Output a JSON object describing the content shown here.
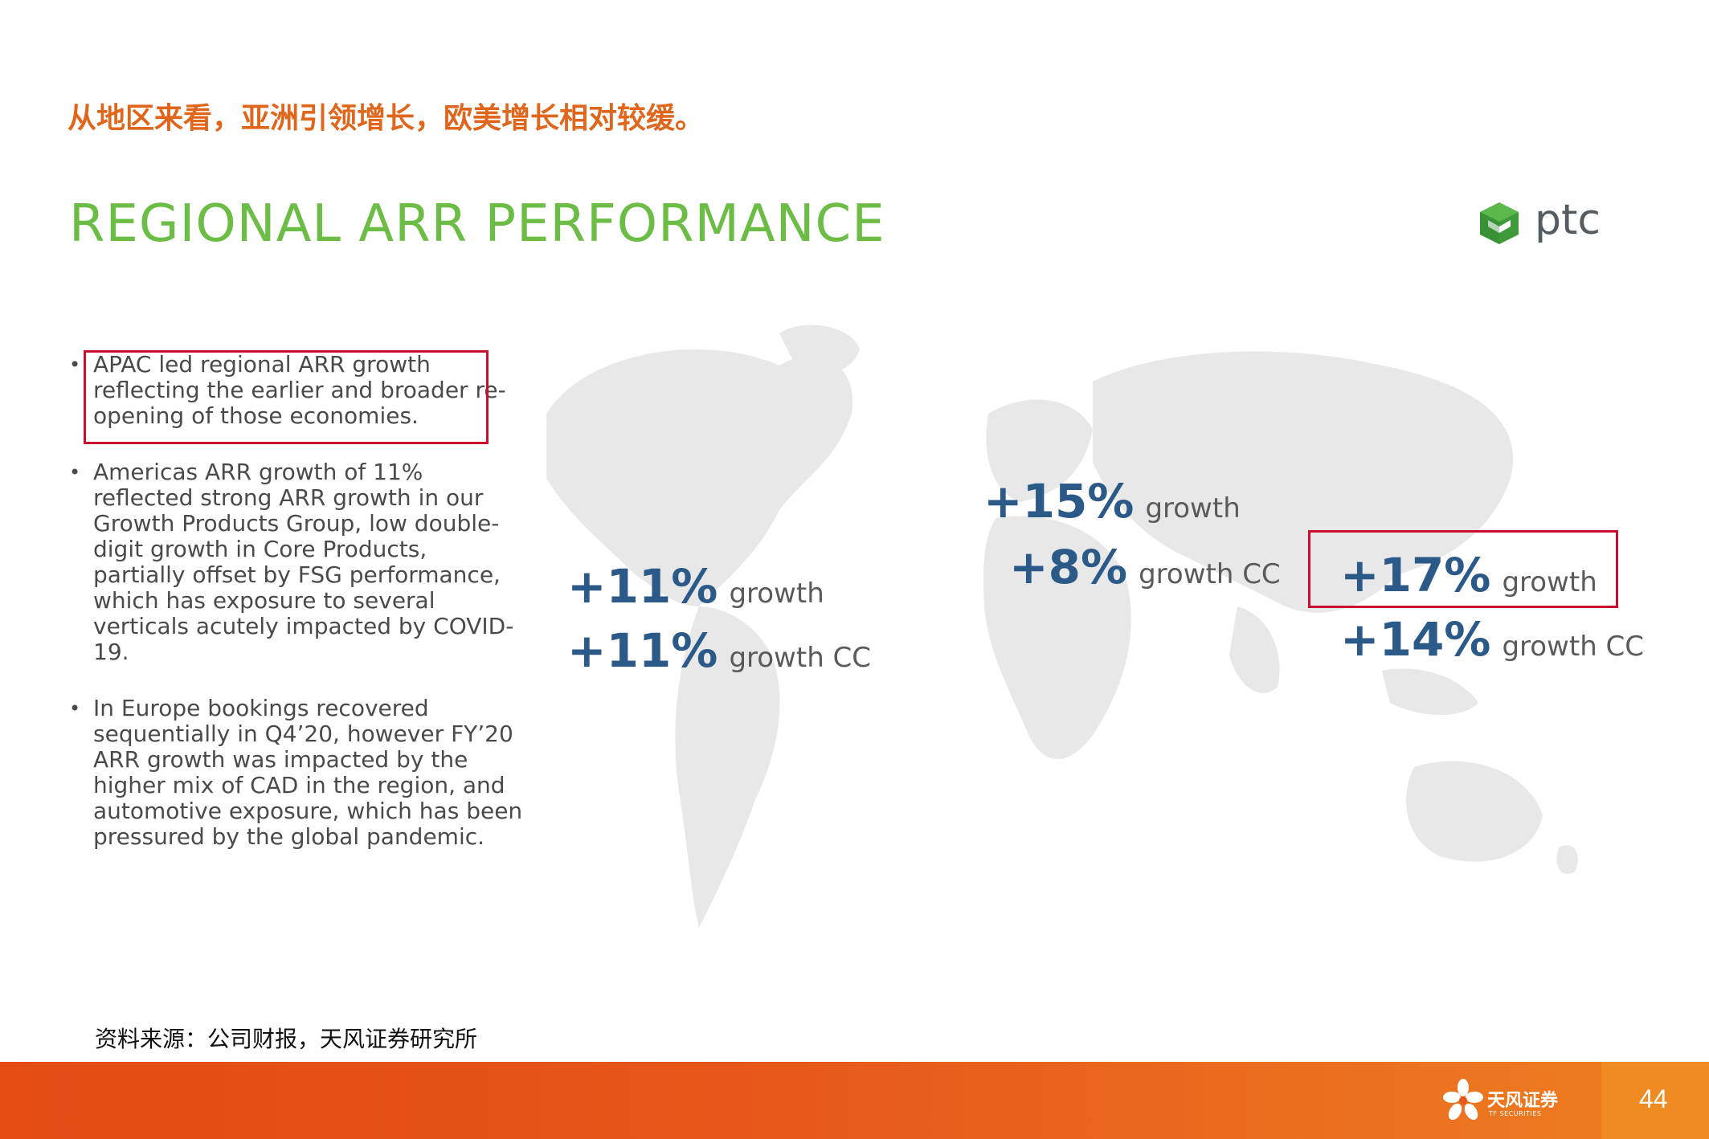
{
  "headline": "从地区来看，亚洲引领增长，欧美增长相对较缓。",
  "title": "REGIONAL ARR PERFORMANCE",
  "logo": {
    "text": "ptc",
    "icon": "ptc-cube-icon"
  },
  "bullets": [
    "APAC led regional ARR growth reflecting the earlier and broader re-opening of those economies.",
    "Americas ARR growth of 11% reflected strong ARR growth in our Growth Products Group, low double-digit growth in Core Products, partially offset by FSG performance, which has exposure to several verticals acutely impacted by COVID-19.",
    "In Europe bookings recovered sequentially in Q4’20, however FY’20 ARR growth was impacted by the higher mix of CAD in the region, and automotive exposure, which has been pressured by the global pandemic."
  ],
  "regions": {
    "americas": {
      "growth": "+11%",
      "growth_label": "growth",
      "cc": "+11%",
      "cc_label": "growth CC"
    },
    "europe": {
      "growth": "+15%",
      "growth_label": "growth",
      "cc": "+8%",
      "cc_label": "growth CC"
    },
    "apac": {
      "growth": "+17%",
      "growth_label": "growth",
      "cc": "+14%",
      "cc_label": "growth CC"
    }
  },
  "source": "资料来源：公司财报，天风证券研究所",
  "footer": {
    "brand": "天风证券",
    "brand_sub": "TF SECURITIES",
    "page": "44"
  },
  "colors": {
    "headline": "#e0661c",
    "title": "#6cbd45",
    "stat": "#2c5a88",
    "highlight_box": "#c8102e",
    "footer": "#e6571a"
  }
}
